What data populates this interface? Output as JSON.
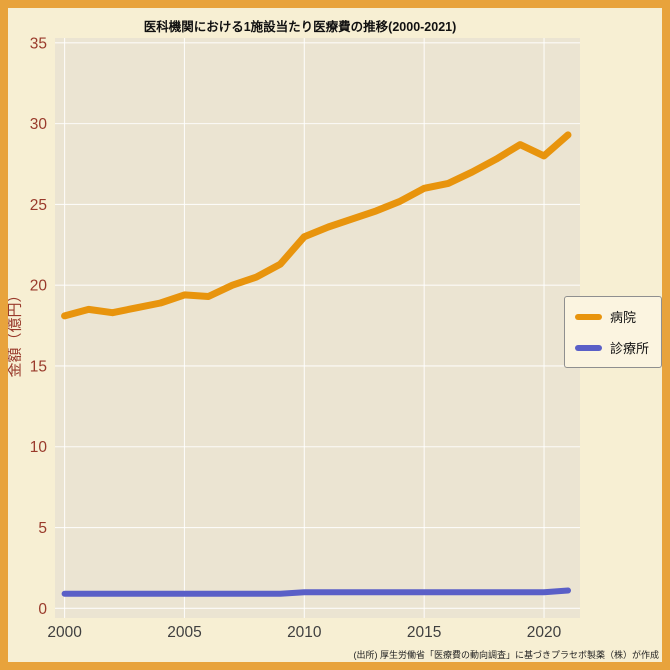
{
  "title": "医科機関における1施設当たり医療費の推移(2000-2021)",
  "ylabel": "金額（億円）",
  "source_note": "(出所) 厚生労働省「医療費の動向調査」に基づきプラセボ製薬（株）が作成",
  "colors": {
    "frame": "#E8A33C",
    "background": "#F7EFD3",
    "plot_background": "#EBE4D2",
    "grid": "#FFFFFF",
    "hospital": "#E8940D",
    "clinic": "#5A5FC7",
    "y_tick": "#993A2B",
    "x_tick": "#3F3F3F"
  },
  "legend": {
    "items": [
      {
        "label": "病院",
        "color": "#E8940D"
      },
      {
        "label": "診療所",
        "color": "#5A5FC7"
      }
    ]
  },
  "chart_data": {
    "type": "line",
    "title": "医科機関における1施設当たり医療費の推移(2000-2021)",
    "xlabel": "",
    "ylabel": "金額（億円）",
    "x": [
      2000,
      2001,
      2002,
      2003,
      2004,
      2005,
      2006,
      2007,
      2008,
      2009,
      2010,
      2011,
      2012,
      2013,
      2014,
      2015,
      2016,
      2017,
      2018,
      2019,
      2020,
      2021
    ],
    "series": [
      {
        "name": "病院",
        "color": "#E8940D",
        "values": [
          18.1,
          18.5,
          18.3,
          18.6,
          18.9,
          19.4,
          19.3,
          20.0,
          20.5,
          21.3,
          23.0,
          23.6,
          24.1,
          24.6,
          25.2,
          26.0,
          26.3,
          27.0,
          27.8,
          28.7,
          28.0,
          29.3
        ]
      },
      {
        "name": "診療所",
        "color": "#5A5FC7",
        "values": [
          0.9,
          0.9,
          0.9,
          0.9,
          0.9,
          0.9,
          0.9,
          0.9,
          0.9,
          0.9,
          1.0,
          1.0,
          1.0,
          1.0,
          1.0,
          1.0,
          1.0,
          1.0,
          1.0,
          1.0,
          1.0,
          1.1
        ]
      }
    ],
    "xticks": [
      2000,
      2005,
      2010,
      2015,
      2020
    ],
    "yticks": [
      0,
      5,
      10,
      15,
      20,
      25,
      30,
      35
    ],
    "xlim": [
      2000,
      2021
    ],
    "ylim": [
      0,
      35
    ],
    "grid": true,
    "legend_position": "right"
  }
}
